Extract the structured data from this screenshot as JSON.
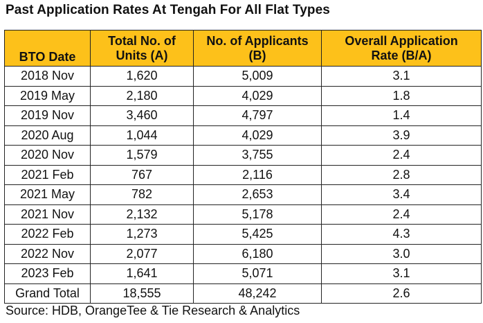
{
  "title": "Past Application Rates At Tengah For All Flat Types",
  "table": {
    "headers": [
      [
        "BTO Date"
      ],
      [
        "Total No. of",
        "Units (A)"
      ],
      [
        "No. of Applicants",
        "(B)"
      ],
      [
        "Overall Application",
        "Rate (B/A)"
      ]
    ],
    "rows": [
      [
        "2018 Nov",
        "1,620",
        "5,009",
        "3.1"
      ],
      [
        "2019 May",
        "2,180",
        "4,029",
        "1.8"
      ],
      [
        "2019 Nov",
        "3,460",
        "4,797",
        "1.4"
      ],
      [
        "2020 Aug",
        "1,044",
        "4,029",
        "3.9"
      ],
      [
        "2020 Nov",
        "1,579",
        "3,755",
        "2.4"
      ],
      [
        "2021 Feb",
        "767",
        "2,116",
        "2.8"
      ],
      [
        "2021 May",
        "782",
        "2,653",
        "3.4"
      ],
      [
        "2021 Nov",
        "2,132",
        "5,178",
        "2.4"
      ],
      [
        "2022 Feb",
        "1,273",
        "5,425",
        "4.3"
      ],
      [
        "2022 Nov",
        "2,077",
        "6,180",
        "3.0"
      ],
      [
        "2023 Feb",
        "1,641",
        "5,071",
        "3.1"
      ],
      [
        "Grand Total",
        "18,555",
        "48,242",
        "2.6"
      ]
    ]
  },
  "source": "Source: HDB, OrangeTee & Tie Research & Analytics",
  "colors": {
    "header_bg": "#fdc11a",
    "border": "#222222"
  }
}
